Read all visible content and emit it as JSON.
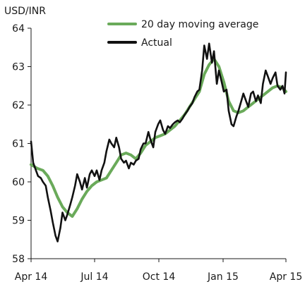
{
  "chart_data": {
    "type": "line",
    "title": "",
    "ylabel": "USD/INR",
    "xlabel": "",
    "ylim": [
      58,
      64
    ],
    "yticks": [
      "58",
      "59",
      "60",
      "61",
      "62",
      "63",
      "64"
    ],
    "x_date_range": [
      "2014-04-01",
      "2015-04-01"
    ],
    "xticks": [
      {
        "date": "2014-04-01",
        "label": "Apr 14"
      },
      {
        "date": "2014-07-01",
        "label": "Jul 14"
      },
      {
        "date": "2014-10-01",
        "label": "Oct 14"
      },
      {
        "date": "2015-01-01",
        "label": "Jan 15"
      },
      {
        "date": "2015-04-01",
        "label": "Apr 15"
      }
    ],
    "grid": false,
    "legend_position": "top",
    "series": [
      {
        "name": "20 day moving average",
        "color": "#6aaa5a",
        "points": [
          [
            "2014-04-01",
            60.45
          ],
          [
            "2014-04-10",
            60.35
          ],
          [
            "2014-04-18",
            60.3
          ],
          [
            "2014-04-25",
            60.15
          ],
          [
            "2014-05-02",
            59.9
          ],
          [
            "2014-05-09",
            59.6
          ],
          [
            "2014-05-16",
            59.35
          ],
          [
            "2014-05-23",
            59.2
          ],
          [
            "2014-05-30",
            59.1
          ],
          [
            "2014-06-06",
            59.3
          ],
          [
            "2014-06-13",
            59.55
          ],
          [
            "2014-06-20",
            59.75
          ],
          [
            "2014-06-27",
            59.9
          ],
          [
            "2014-07-04",
            60.0
          ],
          [
            "2014-07-11",
            60.05
          ],
          [
            "2014-07-18",
            60.1
          ],
          [
            "2014-07-25",
            60.3
          ],
          [
            "2014-08-01",
            60.5
          ],
          [
            "2014-08-08",
            60.7
          ],
          [
            "2014-08-15",
            60.75
          ],
          [
            "2014-08-22",
            60.7
          ],
          [
            "2014-08-29",
            60.6
          ],
          [
            "2014-09-05",
            60.75
          ],
          [
            "2014-09-12",
            60.95
          ],
          [
            "2014-09-19",
            61.05
          ],
          [
            "2014-09-26",
            61.15
          ],
          [
            "2014-10-03",
            61.2
          ],
          [
            "2014-10-10",
            61.25
          ],
          [
            "2014-10-17",
            61.35
          ],
          [
            "2014-10-24",
            61.45
          ],
          [
            "2014-10-31",
            61.6
          ],
          [
            "2014-11-07",
            61.75
          ],
          [
            "2014-11-14",
            61.95
          ],
          [
            "2014-11-21",
            62.15
          ],
          [
            "2014-11-28",
            62.35
          ],
          [
            "2014-12-05",
            62.8
          ],
          [
            "2014-12-12",
            63.05
          ],
          [
            "2014-12-19",
            63.2
          ],
          [
            "2014-12-26",
            63.0
          ],
          [
            "2015-01-02",
            62.6
          ],
          [
            "2015-01-09",
            62.1
          ],
          [
            "2015-01-16",
            61.85
          ],
          [
            "2015-01-23",
            61.8
          ],
          [
            "2015-01-30",
            61.85
          ],
          [
            "2015-02-06",
            61.95
          ],
          [
            "2015-02-13",
            62.05
          ],
          [
            "2015-02-20",
            62.15
          ],
          [
            "2015-02-27",
            62.25
          ],
          [
            "2015-03-06",
            62.35
          ],
          [
            "2015-03-13",
            62.45
          ],
          [
            "2015-03-20",
            62.5
          ],
          [
            "2015-03-27",
            62.45
          ],
          [
            "2015-04-01",
            62.35
          ]
        ]
      },
      {
        "name": "Actual",
        "color": "#111111",
        "points": [
          [
            "2014-04-01",
            61.05
          ],
          [
            "2014-04-04",
            60.5
          ],
          [
            "2014-04-08",
            60.3
          ],
          [
            "2014-04-11",
            60.15
          ],
          [
            "2014-04-15",
            60.1
          ],
          [
            "2014-04-18",
            60.0
          ],
          [
            "2014-04-22",
            59.9
          ],
          [
            "2014-04-25",
            59.6
          ],
          [
            "2014-04-29",
            59.25
          ],
          [
            "2014-05-02",
            58.95
          ],
          [
            "2014-05-06",
            58.6
          ],
          [
            "2014-05-09",
            58.45
          ],
          [
            "2014-05-13",
            58.8
          ],
          [
            "2014-05-16",
            59.2
          ],
          [
            "2014-05-20",
            59.0
          ],
          [
            "2014-05-23",
            59.15
          ],
          [
            "2014-05-27",
            59.4
          ],
          [
            "2014-05-30",
            59.6
          ],
          [
            "2014-06-03",
            59.9
          ],
          [
            "2014-06-06",
            60.2
          ],
          [
            "2014-06-10",
            60.0
          ],
          [
            "2014-06-13",
            59.8
          ],
          [
            "2014-06-17",
            60.1
          ],
          [
            "2014-06-20",
            59.85
          ],
          [
            "2014-06-24",
            60.2
          ],
          [
            "2014-06-27",
            60.3
          ],
          [
            "2014-07-01",
            60.15
          ],
          [
            "2014-07-04",
            60.3
          ],
          [
            "2014-07-08",
            60.05
          ],
          [
            "2014-07-11",
            60.3
          ],
          [
            "2014-07-15",
            60.5
          ],
          [
            "2014-07-18",
            60.8
          ],
          [
            "2014-07-22",
            61.1
          ],
          [
            "2014-07-25",
            61.0
          ],
          [
            "2014-07-29",
            60.9
          ],
          [
            "2014-08-01",
            61.15
          ],
          [
            "2014-08-05",
            60.9
          ],
          [
            "2014-08-08",
            60.6
          ],
          [
            "2014-08-12",
            60.5
          ],
          [
            "2014-08-15",
            60.55
          ],
          [
            "2014-08-19",
            60.35
          ],
          [
            "2014-08-22",
            60.5
          ],
          [
            "2014-08-26",
            60.45
          ],
          [
            "2014-08-29",
            60.55
          ],
          [
            "2014-09-02",
            60.6
          ],
          [
            "2014-09-05",
            60.85
          ],
          [
            "2014-09-09",
            61.0
          ],
          [
            "2014-09-12",
            61.0
          ],
          [
            "2014-09-16",
            61.3
          ],
          [
            "2014-09-19",
            61.1
          ],
          [
            "2014-09-23",
            60.9
          ],
          [
            "2014-09-26",
            61.3
          ],
          [
            "2014-09-30",
            61.5
          ],
          [
            "2014-10-03",
            61.6
          ],
          [
            "2014-10-07",
            61.35
          ],
          [
            "2014-10-10",
            61.25
          ],
          [
            "2014-10-14",
            61.45
          ],
          [
            "2014-10-17",
            61.4
          ],
          [
            "2014-10-21",
            61.5
          ],
          [
            "2014-10-24",
            61.55
          ],
          [
            "2014-10-28",
            61.6
          ],
          [
            "2014-10-31",
            61.55
          ],
          [
            "2014-11-04",
            61.65
          ],
          [
            "2014-11-07",
            61.75
          ],
          [
            "2014-11-11",
            61.85
          ],
          [
            "2014-11-14",
            61.95
          ],
          [
            "2014-11-18",
            62.05
          ],
          [
            "2014-11-21",
            62.2
          ],
          [
            "2014-11-25",
            62.35
          ],
          [
            "2014-11-28",
            62.4
          ],
          [
            "2014-12-02",
            62.9
          ],
          [
            "2014-12-05",
            63.55
          ],
          [
            "2014-12-09",
            63.2
          ],
          [
            "2014-12-12",
            63.6
          ],
          [
            "2014-12-16",
            63.1
          ],
          [
            "2014-12-19",
            63.4
          ],
          [
            "2014-12-23",
            62.55
          ],
          [
            "2014-12-26",
            62.9
          ],
          [
            "2014-12-30",
            62.6
          ],
          [
            "2015-01-02",
            62.35
          ],
          [
            "2015-01-06",
            62.4
          ],
          [
            "2015-01-09",
            61.85
          ],
          [
            "2015-01-13",
            61.5
          ],
          [
            "2015-01-16",
            61.45
          ],
          [
            "2015-01-20",
            61.7
          ],
          [
            "2015-01-23",
            61.85
          ],
          [
            "2015-01-27",
            62.1
          ],
          [
            "2015-01-30",
            62.3
          ],
          [
            "2015-02-03",
            62.1
          ],
          [
            "2015-02-06",
            61.95
          ],
          [
            "2015-02-10",
            62.3
          ],
          [
            "2015-02-13",
            62.35
          ],
          [
            "2015-02-17",
            62.1
          ],
          [
            "2015-02-20",
            62.25
          ],
          [
            "2015-02-24",
            62.05
          ],
          [
            "2015-02-27",
            62.55
          ],
          [
            "2015-03-03",
            62.9
          ],
          [
            "2015-03-06",
            62.75
          ],
          [
            "2015-03-10",
            62.55
          ],
          [
            "2015-03-13",
            62.7
          ],
          [
            "2015-03-17",
            62.85
          ],
          [
            "2015-03-20",
            62.5
          ],
          [
            "2015-03-24",
            62.4
          ],
          [
            "2015-03-27",
            62.5
          ],
          [
            "2015-03-30",
            62.3
          ],
          [
            "2015-04-01",
            62.85
          ]
        ]
      }
    ]
  }
}
